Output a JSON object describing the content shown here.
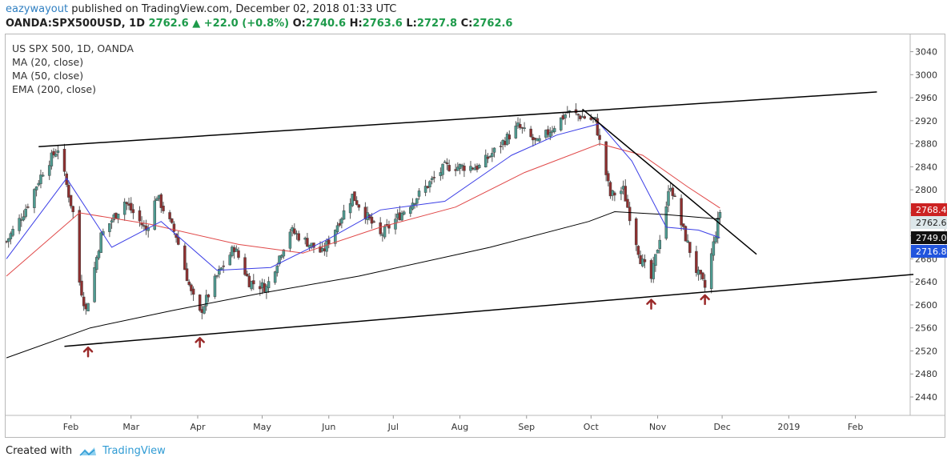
{
  "header": {
    "user": "eazywayout",
    "published": " published on TradingView.com, December 02, 2018 01:33 UTC",
    "symbol": "OANDA:SPX500USD, 1D",
    "last": "2762.6",
    "change": "▲ +22.0 (+0.8%)",
    "o_label": "O:",
    "o_value": "2740.6",
    "h_label": "H:",
    "h_value": "2763.6",
    "l_label": "L:",
    "l_value": "2727.8",
    "c_label": "C:",
    "c_value": "2762.6"
  },
  "legend": {
    "title": "US SPX 500, 1D, OANDA",
    "ma20": "MA (20, close)",
    "ma50": "MA (50, close)",
    "ema200": "EMA (200, close)"
  },
  "footer": {
    "created": "Created with",
    "brand": "TradingView"
  },
  "colors": {
    "up": "#4e9c92",
    "down": "#8f2f2f",
    "ma20": "#3b3ee6",
    "ma50": "#e04848",
    "ema200": "#000000",
    "trend": "#000000",
    "arrow": "#9b2a2a",
    "tag_ma50": "#cc2222",
    "tag_last": "#dde7ea",
    "tag_ema": "#111111",
    "tag_ma20": "#2255dd"
  },
  "chart_data": {
    "type": "candlestick",
    "instrument": "US SPX 500",
    "x_labels": [
      "Feb",
      "Mar",
      "Apr",
      "May",
      "Jun",
      "Jul",
      "Aug",
      "Sep",
      "Oct",
      "Nov",
      "Dec",
      "2019",
      "Feb"
    ],
    "y_ticks": [
      2440,
      2480,
      2520,
      2560,
      2600,
      2640,
      2680,
      2720,
      2760,
      2800,
      2840,
      2880,
      2920,
      2960,
      3000,
      3040
    ],
    "ylim": [
      2408,
      3070
    ],
    "axis_tags": [
      {
        "label": "2768.4",
        "value": 2768.4,
        "series": "MA 50"
      },
      {
        "label": "2762.6",
        "value": 2762.6,
        "series": "Last"
      },
      {
        "label": "2749.0",
        "value": 2749.0,
        "series": "EMA 200"
      },
      {
        "label": "2716.8",
        "value": 2716.8,
        "series": "MA 20"
      }
    ],
    "price_path": [
      {
        "t": "2018-01-02",
        "c": 2710
      },
      {
        "t": "2018-01-10",
        "c": 2760
      },
      {
        "t": "2018-01-20",
        "c": 2840
      },
      {
        "t": "2018-01-26",
        "c": 2872
      },
      {
        "t": "2018-02-02",
        "c": 2760
      },
      {
        "t": "2018-02-05",
        "c": 2640
      },
      {
        "t": "2018-02-08",
        "c": 2590
      },
      {
        "t": "2018-02-15",
        "c": 2720
      },
      {
        "t": "2018-02-26",
        "c": 2780
      },
      {
        "t": "2018-03-08",
        "c": 2730
      },
      {
        "t": "2018-03-13",
        "c": 2790
      },
      {
        "t": "2018-03-22",
        "c": 2720
      },
      {
        "t": "2018-03-29",
        "c": 2620
      },
      {
        "t": "2018-04-02",
        "c": 2585
      },
      {
        "t": "2018-04-10",
        "c": 2650
      },
      {
        "t": "2018-04-18",
        "c": 2700
      },
      {
        "t": "2018-04-25",
        "c": 2640
      },
      {
        "t": "2018-05-03",
        "c": 2630
      },
      {
        "t": "2018-05-14",
        "c": 2730
      },
      {
        "t": "2018-05-29",
        "c": 2690
      },
      {
        "t": "2018-06-12",
        "c": 2790
      },
      {
        "t": "2018-06-25",
        "c": 2720
      },
      {
        "t": "2018-07-10",
        "c": 2780
      },
      {
        "t": "2018-07-25",
        "c": 2840
      },
      {
        "t": "2018-08-10",
        "c": 2840
      },
      {
        "t": "2018-08-28",
        "c": 2910
      },
      {
        "t": "2018-09-06",
        "c": 2880
      },
      {
        "t": "2018-09-20",
        "c": 2935
      },
      {
        "t": "2018-10-03",
        "c": 2920
      },
      {
        "t": "2018-10-10",
        "c": 2790
      },
      {
        "t": "2018-10-16",
        "c": 2800
      },
      {
        "t": "2018-10-24",
        "c": 2680
      },
      {
        "t": "2018-10-29",
        "c": 2645
      },
      {
        "t": "2018-11-07",
        "c": 2810
      },
      {
        "t": "2018-11-12",
        "c": 2740
      },
      {
        "t": "2018-11-19",
        "c": 2660
      },
      {
        "t": "2018-11-23",
        "c": 2630
      },
      {
        "t": "2018-11-30",
        "c": 2762.6
      }
    ],
    "ma20_path": [
      {
        "t": "2018-01-02",
        "c": 2680
      },
      {
        "t": "2018-01-30",
        "c": 2820
      },
      {
        "t": "2018-02-20",
        "c": 2700
      },
      {
        "t": "2018-03-15",
        "c": 2745
      },
      {
        "t": "2018-04-10",
        "c": 2660
      },
      {
        "t": "2018-05-05",
        "c": 2665
      },
      {
        "t": "2018-06-01",
        "c": 2715
      },
      {
        "t": "2018-06-25",
        "c": 2765
      },
      {
        "t": "2018-07-25",
        "c": 2780
      },
      {
        "t": "2018-08-25",
        "c": 2860
      },
      {
        "t": "2018-09-15",
        "c": 2895
      },
      {
        "t": "2018-10-05",
        "c": 2915
      },
      {
        "t": "2018-10-20",
        "c": 2850
      },
      {
        "t": "2018-11-05",
        "c": 2735
      },
      {
        "t": "2018-11-20",
        "c": 2730
      },
      {
        "t": "2018-11-30",
        "c": 2716.8
      }
    ],
    "ma50_path": [
      {
        "t": "2018-01-02",
        "c": 2650
      },
      {
        "t": "2018-02-05",
        "c": 2760
      },
      {
        "t": "2018-03-10",
        "c": 2740
      },
      {
        "t": "2018-04-20",
        "c": 2705
      },
      {
        "t": "2018-05-20",
        "c": 2690
      },
      {
        "t": "2018-06-25",
        "c": 2735
      },
      {
        "t": "2018-07-30",
        "c": 2770
      },
      {
        "t": "2018-08-31",
        "c": 2830
      },
      {
        "t": "2018-10-05",
        "c": 2880
      },
      {
        "t": "2018-10-25",
        "c": 2860
      },
      {
        "t": "2018-11-15",
        "c": 2805
      },
      {
        "t": "2018-11-30",
        "c": 2768.4
      }
    ],
    "ema200_path": [
      {
        "t": "2018-01-02",
        "c": 2508
      },
      {
        "t": "2018-02-10",
        "c": 2560
      },
      {
        "t": "2018-03-20",
        "c": 2590
      },
      {
        "t": "2018-04-30",
        "c": 2620
      },
      {
        "t": "2018-06-15",
        "c": 2650
      },
      {
        "t": "2018-08-15",
        "c": 2700
      },
      {
        "t": "2018-09-30",
        "c": 2745
      },
      {
        "t": "2018-10-12",
        "c": 2762
      },
      {
        "t": "2018-11-05",
        "c": 2757
      },
      {
        "t": "2018-11-30",
        "c": 2749
      }
    ],
    "trendlines": [
      {
        "name": "upper-channel",
        "from": {
          "t": "2018-01-17",
          "c": 2875
        },
        "to": {
          "t": "2019-02-11",
          "c": 2970
        }
      },
      {
        "name": "lower-channel",
        "from": {
          "t": "2018-01-29",
          "c": 2528
        },
        "to": {
          "t": "2019-02-28",
          "c": 2653
        }
      },
      {
        "name": "descending-resistance",
        "from": {
          "t": "2018-09-27",
          "c": 2940
        },
        "to": {
          "t": "2018-12-17",
          "c": 2688
        }
      }
    ],
    "arrows": [
      "2018-02-09",
      "2018-04-02",
      "2018-10-29",
      "2018-11-23"
    ]
  }
}
